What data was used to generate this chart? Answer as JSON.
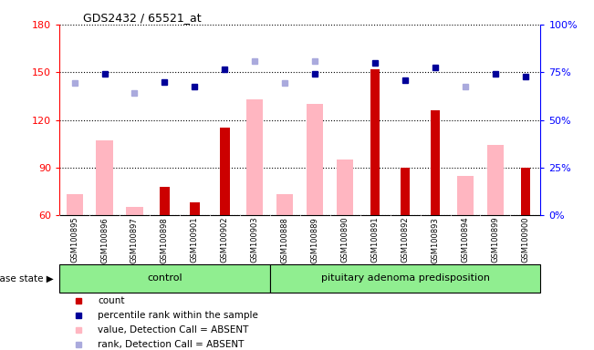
{
  "title": "GDS2432 / 65521_at",
  "samples": [
    "GSM100895",
    "GSM100896",
    "GSM100897",
    "GSM100898",
    "GSM100901",
    "GSM100902",
    "GSM100903",
    "GSM100888",
    "GSM100889",
    "GSM100890",
    "GSM100891",
    "GSM100892",
    "GSM100893",
    "GSM100894",
    "GSM100899",
    "GSM100900"
  ],
  "count": [
    0,
    0,
    0,
    78,
    68,
    115,
    0,
    0,
    0,
    0,
    152,
    90,
    126,
    0,
    0,
    90
  ],
  "percentile_rank": [
    0,
    149,
    0,
    144,
    141,
    152,
    0,
    0,
    149,
    0,
    156,
    145,
    153,
    0,
    149,
    147
  ],
  "value_absent": [
    73,
    107,
    65,
    0,
    0,
    0,
    133,
    73,
    130,
    95,
    0,
    0,
    0,
    85,
    104,
    0
  ],
  "rank_absent": [
    143,
    0,
    137,
    0,
    0,
    0,
    157,
    143,
    157,
    0,
    0,
    0,
    0,
    141,
    0,
    0
  ],
  "ylim_left": [
    60,
    180
  ],
  "ylim_right": [
    0,
    100
  ],
  "yticks_left": [
    60,
    90,
    120,
    150,
    180
  ],
  "ytick_labels_left": [
    "60",
    "90",
    "120",
    "150",
    "180"
  ],
  "yticks_right_vals": [
    0,
    25,
    50,
    75,
    100
  ],
  "ytick_labels_right": [
    "0%",
    "25%",
    "50%",
    "75%",
    "100%"
  ],
  "color_count": "#CC0000",
  "color_percentile": "#000099",
  "color_value_absent": "#FFB6C1",
  "color_rank_absent": "#AAAADD",
  "color_bg_xticklabels": "#d3d3d3",
  "color_control_band": "#90EE90",
  "color_pituitary_band": "#90EE90",
  "disease_state_label": "disease state",
  "control_label": "control",
  "pituitary_label": "pituitary adenoma predisposition",
  "legend_count": "count",
  "legend_percentile": "percentile rank within the sample",
  "legend_value_absent": "value, Detection Call = ABSENT",
  "legend_rank_absent": "rank, Detection Call = ABSENT",
  "n_control": 7,
  "n_pituitary": 9
}
